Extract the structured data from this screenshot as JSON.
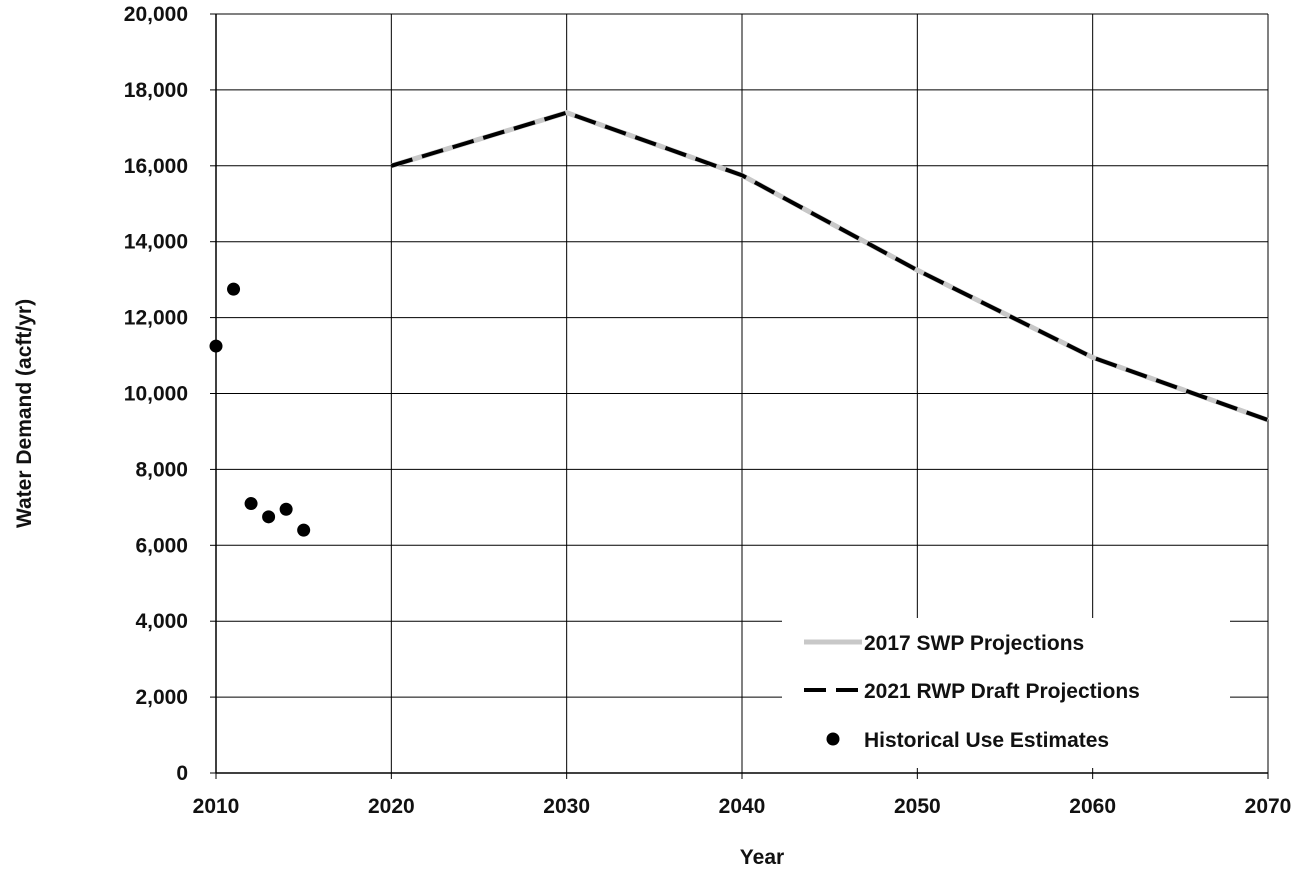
{
  "chart_data": {
    "type": "line",
    "title": "",
    "xlabel": "Year",
    "ylabel": "Water Demand (acft/yr)",
    "xlim": [
      2010,
      2070
    ],
    "ylim": [
      0,
      20000
    ],
    "x_ticks": [
      2010,
      2020,
      2030,
      2040,
      2050,
      2060,
      2070
    ],
    "x_tick_labels": [
      "2010",
      "2020",
      "2030",
      "2040",
      "2050",
      "2060",
      "2070"
    ],
    "y_ticks": [
      0,
      2000,
      4000,
      6000,
      8000,
      10000,
      12000,
      14000,
      16000,
      18000,
      20000
    ],
    "y_tick_labels": [
      "0",
      "2,000",
      "4,000",
      "6,000",
      "8,000",
      "10,000",
      "12,000",
      "14,000",
      "16,000",
      "18,000",
      "20,000"
    ],
    "grid": true,
    "legend_position": "bottom-right",
    "series": [
      {
        "name": "2017 SWP Projections",
        "style": "solid",
        "color": "#c8c8c8",
        "x": [
          2020,
          2030,
          2040,
          2050,
          2060,
          2070
        ],
        "y": [
          16000,
          17400,
          15750,
          13250,
          10950,
          9300
        ]
      },
      {
        "name": "2021 RWP Draft Projections",
        "style": "dashed",
        "color": "#000000",
        "x": [
          2020,
          2030,
          2040,
          2050,
          2060,
          2070
        ],
        "y": [
          16000,
          17400,
          15750,
          13250,
          10950,
          9300
        ]
      },
      {
        "name": "Historical Use Estimates",
        "style": "markers",
        "color": "#000000",
        "x": [
          2010,
          2011,
          2012,
          2013,
          2014,
          2015
        ],
        "y": [
          11250,
          12750,
          7100,
          6750,
          6950,
          6400
        ]
      }
    ]
  }
}
